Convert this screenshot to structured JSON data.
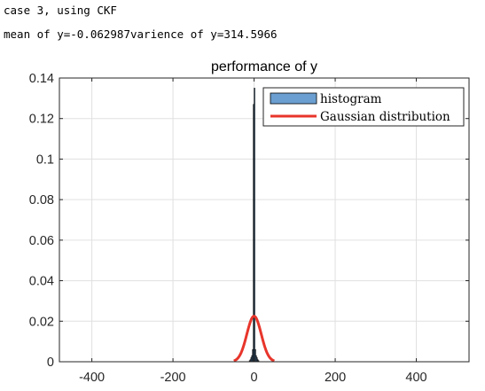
{
  "console": {
    "line1": "case 3, using CKF",
    "line2": "mean of y=-0.062987varience of y=314.5966"
  },
  "colors": {
    "histogram_fill": "#6b9fd1",
    "histogram_edge": "#000000",
    "gaussian_line": "#e8352b",
    "grid": "#e0e0e0",
    "axes": "#262626"
  },
  "chart_data": {
    "type": "bar",
    "title": "performance of y",
    "xlabel": "",
    "ylabel": "",
    "xlim": [
      -480,
      530
    ],
    "ylim": [
      0,
      0.14
    ],
    "xticks": [
      -400,
      -200,
      0,
      200,
      400
    ],
    "xtick_labels": [
      "-400",
      "-200",
      "0",
      "200",
      "400"
    ],
    "yticks": [
      0,
      0.02,
      0.04,
      0.06,
      0.08,
      0.1,
      0.12,
      0.14
    ],
    "ytick_labels": [
      "0",
      "0.02",
      "0.04",
      "0.06",
      "0.08",
      "0.1",
      "0.12",
      "0.14"
    ],
    "grid": true,
    "legend_position": "top-right",
    "series": [
      {
        "name": "histogram",
        "kind": "histogram",
        "bin_edges": [
          -12,
          -10,
          -8,
          -6,
          -4,
          -2,
          0,
          2,
          4,
          6,
          8,
          10,
          12
        ],
        "values": [
          0.0005,
          0.001,
          0.002,
          0.003,
          0.006,
          0.127,
          0.135,
          0.006,
          0.003,
          0.002,
          0.001,
          0.0005
        ]
      },
      {
        "name": "Gaussian distribution",
        "kind": "line",
        "mean": -0.062987,
        "variance": 314.5966,
        "x_range": [
          -50,
          50
        ]
      }
    ]
  }
}
